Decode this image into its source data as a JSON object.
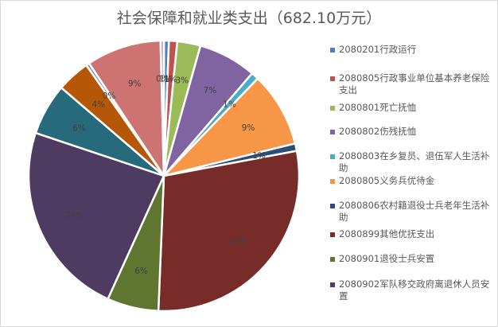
{
  "chart_data": {
    "type": "pie",
    "title": "社会保障和就业类支出（682.10万元）",
    "total": 682.1,
    "unit": "万元",
    "legend_position": "right",
    "slices": [
      {
        "name": "2080201行政运行",
        "label": "1%",
        "value": 0.6,
        "color": "#4f81bd"
      },
      {
        "name": "2080805行政事业单位基本养老保险支出",
        "label": "1%",
        "value": 1.0,
        "color": "#c0504d"
      },
      {
        "name": "2080801死亡抚恤",
        "label": "3%",
        "value": 2.8,
        "color": "#9bbb59"
      },
      {
        "name": "2080802伤残抚恤",
        "label": "7%",
        "value": 7.0,
        "color": "#8064a2"
      },
      {
        "name": "2080803在乡复员、退伍军人生活补助",
        "label": "1%",
        "value": 0.9,
        "color": "#4bacc6"
      },
      {
        "name": "2080805义务兵优待金",
        "label": "9%",
        "value": 9.0,
        "color": "#f79646"
      },
      {
        "name": "2080806农村籍退役士兵老年生活补助",
        "label": "1%",
        "value": 0.9,
        "color": "#2c4d75"
      },
      {
        "name": "2080899其他优抚支出",
        "label": "29%",
        "value": 28.8,
        "color": "#772c2a"
      },
      {
        "name": "2080901退役士兵安置",
        "label": "6%",
        "value": 6.2,
        "color": "#5f7530"
      },
      {
        "name": "2080902军队移交政府离退休人员安置",
        "label": "24%",
        "value": 23.5,
        "color": "#4d3b62"
      },
      {
        "name": "",
        "label": "6%",
        "value": 6.2,
        "color": "#276a7c"
      },
      {
        "name": "",
        "label": "4%",
        "value": 4.0,
        "color": "#b65708"
      },
      {
        "name": "",
        "label": "0%",
        "value": 0.4,
        "color": "#729aca"
      },
      {
        "name": "",
        "label": "9%",
        "value": 9.0,
        "color": "#cd7371"
      },
      {
        "name": "",
        "label": "0%",
        "value": 0.4,
        "color": "#ac9dc1"
      }
    ],
    "start_angle_deg": 0,
    "direction": "clockwise"
  },
  "legend": {
    "items": [
      {
        "text": "2080201行政运行",
        "color": "#4f81bd"
      },
      {
        "text": "2080805行政事业单位基本养老保险支出",
        "color": "#c0504d"
      },
      {
        "text": "2080801死亡抚恤",
        "color": "#9bbb59"
      },
      {
        "text": "2080802伤残抚恤",
        "color": "#8064a2"
      },
      {
        "text": "2080803在乡复员、退伍军人生活补助",
        "color": "#4bacc6"
      },
      {
        "text": "2080805义务兵优待金",
        "color": "#f79646"
      },
      {
        "text": "2080806农村籍退役士兵老年生活补助",
        "color": "#2c4d75"
      },
      {
        "text": "2080899其他优抚支出",
        "color": "#772c2a"
      },
      {
        "text": "2080901退役士兵安置",
        "color": "#5f7530"
      },
      {
        "text": "2080902军队移交政府离退休人员安置",
        "color": "#4d3b62"
      }
    ]
  }
}
